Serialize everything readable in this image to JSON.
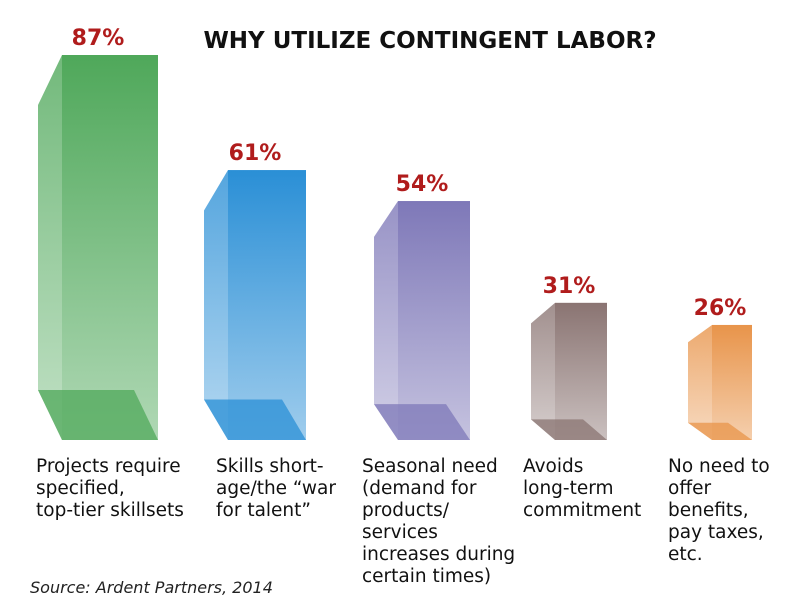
{
  "chart_data": {
    "type": "bar3d",
    "title": "WHY UTILIZE CONTINGENT LABOR?",
    "categories": [
      "Projects require\nspecified,\ntop-tier skillsets",
      "Skills short-\nage/the “war\nfor talent”",
      "Seasonal need\n(demand for\nproducts/\nservices\nincreases during\ncertain times)",
      "Avoids\nlong-term\ncommitment",
      "No need to\noffer\nbenefits,\npay taxes,\netc."
    ],
    "values": [
      87,
      61,
      54,
      31,
      26
    ],
    "value_labels": [
      "87%",
      "61%",
      "54%",
      "31%",
      "26%"
    ],
    "colors": [
      "#4fa85a",
      "#2a8fd6",
      "#7e78b8",
      "#8a7472",
      "#e8944a"
    ],
    "value_label_color": "#b01c1c",
    "source": "Source: Ardent Partners, 2014"
  }
}
